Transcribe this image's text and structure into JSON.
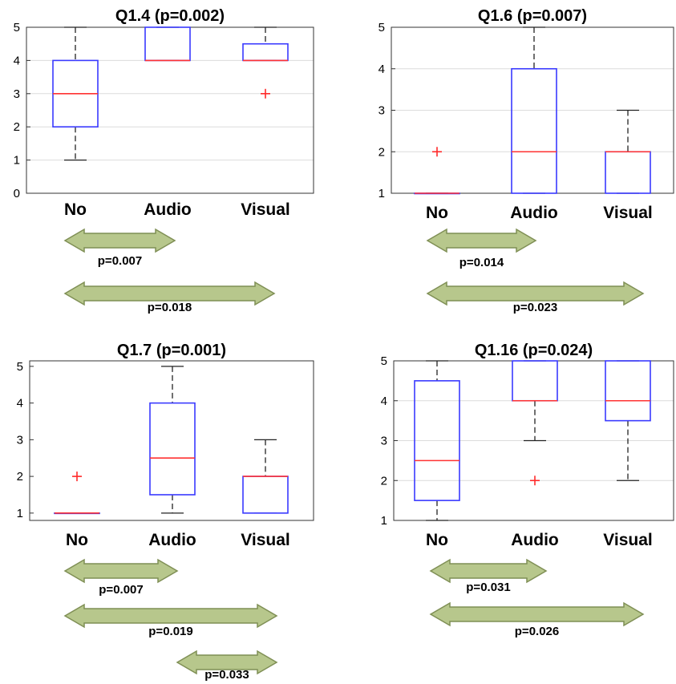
{
  "colors": {
    "box": "#3a3aff",
    "median": "#ff3333",
    "whisker": "#222222",
    "outlier": "#ff2a2a",
    "grid": "#dcdcdc",
    "axes": "#333333",
    "arrow_fill": "#b7c78c",
    "arrow_stroke": "#7f8f55"
  },
  "chart_data": [
    {
      "type": "box",
      "title": "Q1.4 (p=0.002)",
      "categories": [
        "No",
        "Audio",
        "Visual"
      ],
      "ylim": [
        0,
        5
      ],
      "yticks": [
        "0",
        "1",
        "2",
        "3",
        "4",
        "5"
      ],
      "grid": true,
      "boxes": [
        {
          "category": "No",
          "whisker_low": 1,
          "q1": 2,
          "median": 3,
          "q3": 4,
          "whisker_high": 5,
          "outliers": []
        },
        {
          "category": "Audio",
          "whisker_low": 4,
          "q1": 4,
          "median": 4,
          "q3": 5,
          "whisker_high": 5,
          "outliers": []
        },
        {
          "category": "Visual",
          "whisker_low": 4,
          "q1": 4,
          "median": 4,
          "q3": 4.5,
          "whisker_high": 5,
          "outliers": [
            3
          ]
        }
      ],
      "comparisons": [
        {
          "from": "No",
          "to": "Audio",
          "label": "p=0.007"
        },
        {
          "from": "No",
          "to": "Visual",
          "label": "p=0.018"
        }
      ]
    },
    {
      "type": "box",
      "title": "Q1.6 (p=0.007)",
      "categories": [
        "No",
        "Audio",
        "Visual"
      ],
      "ylim": [
        1,
        5
      ],
      "yticks": [
        "1",
        "2",
        "3",
        "4",
        "5"
      ],
      "grid": true,
      "boxes": [
        {
          "category": "No",
          "whisker_low": 1,
          "q1": 1,
          "median": 1,
          "q3": 1,
          "whisker_high": 1,
          "outliers": [
            2
          ]
        },
        {
          "category": "Audio",
          "whisker_low": 1,
          "q1": 1,
          "median": 2,
          "q3": 4,
          "whisker_high": 5,
          "outliers": []
        },
        {
          "category": "Visual",
          "whisker_low": 1,
          "q1": 1,
          "median": 2,
          "q3": 2,
          "whisker_high": 3,
          "outliers": []
        }
      ],
      "comparisons": [
        {
          "from": "No",
          "to": "Audio",
          "label": "p=0.014"
        },
        {
          "from": "No",
          "to": "Visual",
          "label": "p=0.023"
        }
      ]
    },
    {
      "type": "box",
      "title": "Q1.7 (p=0.001)",
      "categories": [
        "No",
        "Audio",
        "Visual"
      ],
      "ylim": [
        0.8,
        5.15
      ],
      "yticks": [
        "1",
        "2",
        "3",
        "4",
        "5"
      ],
      "grid": false,
      "boxes": [
        {
          "category": "No",
          "whisker_low": 1,
          "q1": 1,
          "median": 1,
          "q3": 1,
          "whisker_high": 1,
          "outliers": [
            2
          ]
        },
        {
          "category": "Audio",
          "whisker_low": 1,
          "q1": 1.5,
          "median": 2.5,
          "q3": 4,
          "whisker_high": 5,
          "outliers": []
        },
        {
          "category": "Visual",
          "whisker_low": 1,
          "q1": 1,
          "median": 2,
          "q3": 2,
          "whisker_high": 3,
          "outliers": []
        }
      ],
      "comparisons": [
        {
          "from": "No",
          "to": "Audio",
          "label": "p=0.007"
        },
        {
          "from": "No",
          "to": "Visual",
          "label": "p=0.019"
        },
        {
          "from": "Audio",
          "to": "Visual",
          "label": "p=0.033"
        }
      ]
    },
    {
      "type": "box",
      "title": "Q1.16 (p=0.024)",
      "categories": [
        "No",
        "Audio",
        "Visual"
      ],
      "ylim": [
        1,
        5
      ],
      "yticks": [
        "1",
        "2",
        "3",
        "4",
        "5"
      ],
      "grid": true,
      "boxes": [
        {
          "category": "No",
          "whisker_low": 1,
          "q1": 1.5,
          "median": 2.5,
          "q3": 4.5,
          "whisker_high": 5,
          "outliers": []
        },
        {
          "category": "Audio",
          "whisker_low": 3,
          "q1": 4,
          "median": 4,
          "q3": 5,
          "whisker_high": 5,
          "outliers": [
            2
          ]
        },
        {
          "category": "Visual",
          "whisker_low": 2,
          "q1": 3.5,
          "median": 4,
          "q3": 5,
          "whisker_high": 5,
          "outliers": []
        }
      ],
      "comparisons": [
        {
          "from": "No",
          "to": "Audio",
          "label": "p=0.031"
        },
        {
          "from": "No",
          "to": "Visual",
          "label": "p=0.026"
        }
      ]
    }
  ]
}
